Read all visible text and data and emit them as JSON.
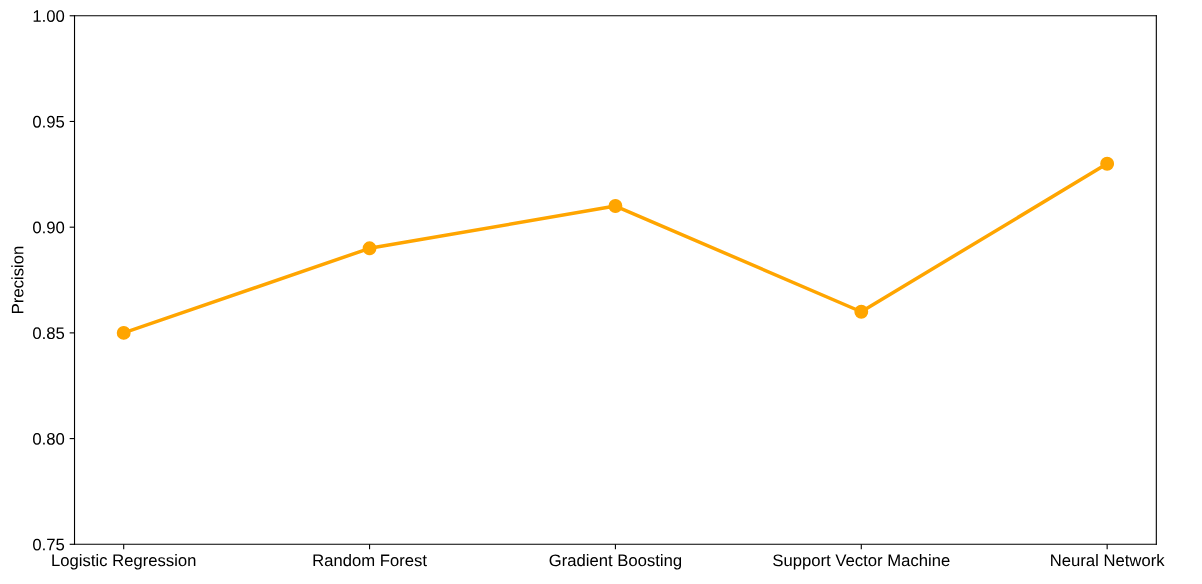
{
  "chart_data": {
    "type": "line",
    "ylabel": "Precision",
    "categories": [
      "Logistic Regression",
      "Random Forest",
      "Gradient Boosting",
      "Support Vector Machine",
      "Neural Network"
    ],
    "series": [
      {
        "color": "#ffa500",
        "values": [
          0.85,
          0.89,
          0.91,
          0.86,
          0.93
        ]
      }
    ],
    "ylim": [
      0.75,
      1.0
    ],
    "yticks": [
      {
        "value": 0.75,
        "label": "0.75"
      },
      {
        "value": 0.8,
        "label": "0.80"
      },
      {
        "value": 0.85,
        "label": "0.85"
      },
      {
        "value": 0.9,
        "label": "0.90"
      },
      {
        "value": 0.95,
        "label": "0.95"
      },
      {
        "value": 1.0,
        "label": "1.00"
      }
    ],
    "marker": "circle",
    "line_style": "solid",
    "grid": false,
    "legend": false
  }
}
